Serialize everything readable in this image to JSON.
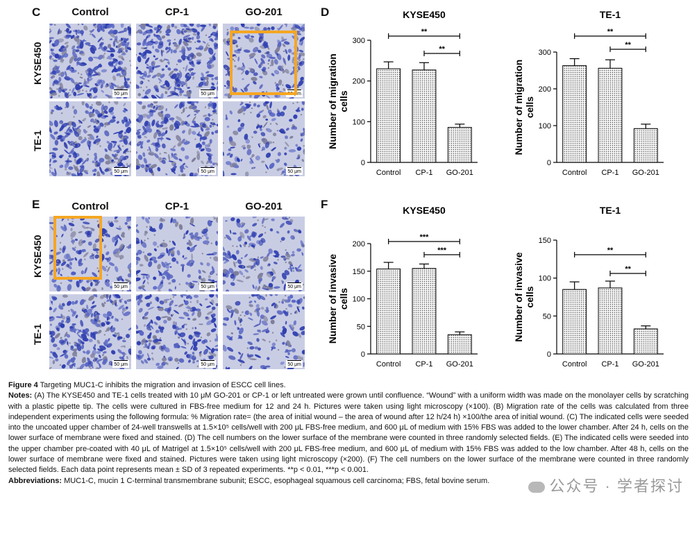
{
  "panels": {
    "C": {
      "letter": "C",
      "columns": [
        "Control",
        "CP-1",
        "GO-201"
      ],
      "rows": [
        "KYSE450",
        "TE-1"
      ],
      "scale": "50 μm"
    },
    "E": {
      "letter": "E",
      "columns": [
        "Control",
        "CP-1",
        "GO-201"
      ],
      "rows": [
        "KYSE450",
        "TE-1"
      ],
      "scale": "50 μm"
    },
    "D": {
      "letter": "D"
    },
    "F": {
      "letter": "F"
    }
  },
  "colors": {
    "highlight": "#f5a623",
    "stain_dense": "#2f3fb0",
    "stain_light": "#c9cde4",
    "bar_fill": "#d9d9d9"
  },
  "chart_data": [
    {
      "id": "D-KYSE450",
      "type": "bar",
      "title": "KYSE450",
      "ylabel": "Number of migration cells",
      "categories": [
        "Control",
        "CP-1",
        "GO-201"
      ],
      "values": [
        230,
        227,
        86
      ],
      "errors": [
        17,
        18,
        8
      ],
      "ylim": [
        0,
        300
      ],
      "yticks": [
        0,
        100,
        200,
        300
      ],
      "significance": [
        {
          "from": 0,
          "to": 2,
          "label": "**"
        },
        {
          "from": 1,
          "to": 2,
          "label": "**"
        }
      ]
    },
    {
      "id": "D-TE1",
      "type": "bar",
      "title": "TE-1",
      "ylabel": "Number of migration cells",
      "categories": [
        "Control",
        "CP-1",
        "GO-201"
      ],
      "values": [
        263,
        256,
        92
      ],
      "errors": [
        19,
        23,
        12
      ],
      "ylim": [
        0,
        300
      ],
      "yticks": [
        0,
        100,
        200,
        300
      ],
      "significance": [
        {
          "from": 0,
          "to": 2,
          "label": "**"
        },
        {
          "from": 1,
          "to": 2,
          "label": "**"
        }
      ]
    },
    {
      "id": "F-KYSE450",
      "type": "bar",
      "title": "KYSE450",
      "ylabel": "Number of invasive cells",
      "categories": [
        "Control",
        "CP-1",
        "GO-201"
      ],
      "values": [
        154,
        155,
        35
      ],
      "errors": [
        12,
        8,
        5
      ],
      "ylim": [
        0,
        200
      ],
      "yticks": [
        0,
        50,
        100,
        150,
        200
      ],
      "significance": [
        {
          "from": 0,
          "to": 2,
          "label": "***"
        },
        {
          "from": 1,
          "to": 2,
          "label": "***"
        }
      ]
    },
    {
      "id": "F-TE1",
      "type": "bar",
      "title": "TE-1",
      "ylabel": "Number of invasive cells",
      "categories": [
        "Control",
        "CP-1",
        "GO-201"
      ],
      "values": [
        85,
        87,
        33
      ],
      "errors": [
        10,
        9,
        4
      ],
      "ylim": [
        0,
        150
      ],
      "yticks": [
        0,
        50,
        100,
        150
      ],
      "significance": [
        {
          "from": 0,
          "to": 2,
          "label": "**"
        },
        {
          "from": 1,
          "to": 2,
          "label": "**"
        }
      ]
    }
  ],
  "caption": {
    "figure_label": "Figure 4",
    "figure_title": " Targeting MUC1-C inhibits the migration and invasion of ESCC cell lines.",
    "notes_label": "Notes:",
    "notes_text": " (A) The KYSE450 and TE-1 cells treated with 10 μM GO-201 or CP-1 or left untreated were grown until confluence. “Wound” with a uniform width was made on the monolayer cells by scratching with a plastic pipette tip. The cells were cultured in FBS-free medium for 12 and 24 h. Pictures were taken using light microscopy (×100). (B) Migration rate of the cells was calculated from three independent experiments using the following formula: % Migration rate= (the area of initial wound – the area of wound after 12 h/24 h) ×100/the area of initial wound. (C) The indicated cells were seeded into the uncoated upper chamber of 24-well transwells at 1.5×10⁵ cells/well with 200 μL FBS-free medium, and 600 μL of medium with 15% FBS was added to the lower chamber. After 24 h, cells on the lower surface of membrane were fixed and stained. (D) The cell numbers on the lower surface of the membrane were counted in three randomly selected fields. (E) The indicated cells were seeded into the upper chamber pre-coated with 40 μL of Matrigel at 1.5×10⁵ cells/well with 200 μL FBS-free medium, and 600 μL of medium with 15% FBS was added to the low chamber. After 48 h, cells on the lower surface of membrane were fixed and stained. Pictures were taken using light microscopy (×200). (F) The cell numbers on the lower surface of the membrane were counted in three randomly selected fields. Each data point represents mean ± SD of 3 repeated experiments. **p < 0.01, ***p < 0.001.",
    "abbr_label": "Abbreviations:",
    "abbr_text": " MUC1-C, mucin 1 C-terminal transmembrane subunit; ESCC, esophageal squamous cell carcinoma; FBS, fetal bovine serum."
  },
  "watermark": {
    "text": "公众号 · 学者探讨",
    "icon": "wechat-icon"
  }
}
